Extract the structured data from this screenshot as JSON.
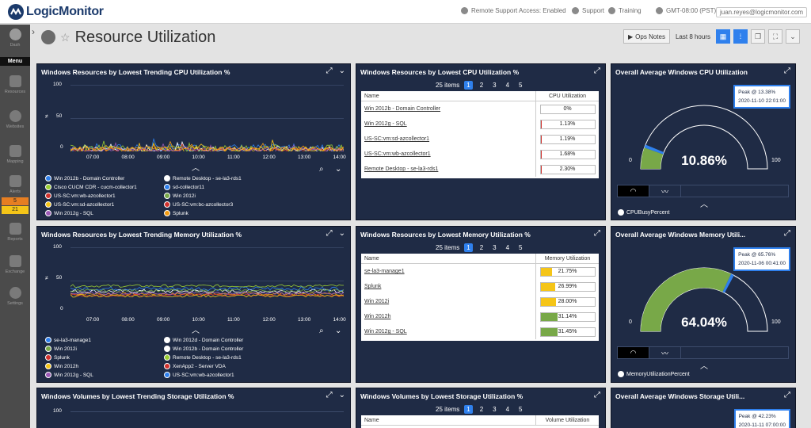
{
  "header": {
    "logo": "LogicMonitor",
    "remote": "Remote Support Access: Enabled",
    "support": "Support",
    "training": "Training",
    "timezone": "GMT-08:00 (PST)",
    "user": "juan.reyes@logicmonitor.com"
  },
  "sidebar": {
    "dash": "Dash",
    "menu": "Menu",
    "items": [
      "Resources",
      "Websites",
      "Mapping",
      "Alerts",
      "Reports",
      "Exchange",
      "Settings"
    ],
    "alert_counts": [
      "5",
      "21"
    ]
  },
  "page": {
    "title": "Resource Utilization",
    "ops_notes": "Ops Notes",
    "time_range": "Last 8 hours"
  },
  "colors": {
    "widget_bg": "#1f2b45",
    "accent": "#2f80ed",
    "gauge_green": "#78a848",
    "bar_yellow": "#f5c518",
    "bar_red": "#d0312d"
  },
  "cpu_trend": {
    "title": "Windows Resources by Lowest Trending CPU Utilization %",
    "y_ticks": [
      "100",
      "50",
      "0"
    ],
    "x_ticks": [
      "07:00",
      "08:00",
      "09:00",
      "10:00",
      "11:00",
      "12:00",
      "13:00",
      "14:00"
    ],
    "legend": [
      {
        "label": "Win 2012b - Domain Controller",
        "color": "#2f80ed"
      },
      {
        "label": "Remote Desktop - se-la3-rds1",
        "color": "#ffffff"
      },
      {
        "label": "Cisco CUCM CDR - cucm-collector1",
        "color": "#9acd32"
      },
      {
        "label": "sd-collector11",
        "color": "#2f80ed"
      },
      {
        "label": "US-SC:vm:wb-azcollector1",
        "color": "#d0312d"
      },
      {
        "label": "Win 2012i",
        "color": "#78a848"
      },
      {
        "label": "US-SC:vm:sd-azcollector1",
        "color": "#f5c518"
      },
      {
        "label": "US-SC:vm:bc-azcollector3",
        "color": "#d0312d"
      },
      {
        "label": "Win 2012g - SQL",
        "color": "#9b59b6"
      },
      {
        "label": "Splunk",
        "color": "#f39c12"
      }
    ]
  },
  "cpu_table": {
    "title": "Windows Resources by Lowest CPU Utilization %",
    "count": "25 items",
    "pages": [
      "1",
      "2",
      "3",
      "4",
      "5"
    ],
    "col_name": "Name",
    "col_val": "CPU Utilization",
    "rows": [
      {
        "name": "Win 2012b - Domain Controller",
        "value": "0%",
        "pct": 0
      },
      {
        "name": "Win 2012g - SQL",
        "value": "1.13%",
        "pct": 1.13
      },
      {
        "name": "US-SC:vm:sd-azcollector1",
        "value": "1.19%",
        "pct": 1.19
      },
      {
        "name": "US-SC:vm:wb-azcollector1",
        "value": "1.68%",
        "pct": 1.68
      },
      {
        "name": "Remote Desktop - se-la3-rds1",
        "value": "2.30%",
        "pct": 2.3
      }
    ]
  },
  "cpu_gauge": {
    "title": "Overall Average Windows CPU Utilization",
    "peak_label": "Peak @ 13.38%",
    "peak_time": "2020-11-10 22:01:00",
    "value": "10.86%",
    "value_num": 10.86,
    "min": "0",
    "max": "100",
    "legend": "CPUBusyPercent"
  },
  "mem_trend": {
    "title": "Windows Resources by Lowest Trending Memory Utilization %",
    "y_ticks": [
      "100",
      "50",
      "0"
    ],
    "x_ticks": [
      "07:00",
      "08:00",
      "09:00",
      "10:00",
      "11:00",
      "12:00",
      "13:00",
      "14:00"
    ],
    "legend": [
      {
        "label": "se-la3-manage1",
        "color": "#2f80ed"
      },
      {
        "label": "Win 2012d - Domain Controller",
        "color": "#ffffff"
      },
      {
        "label": "Win 2012i",
        "color": "#78a848"
      },
      {
        "label": "Win 2012b - Domain Controller",
        "color": "#ffffff"
      },
      {
        "label": "Splunk",
        "color": "#d0312d"
      },
      {
        "label": "Remote Desktop - se-la3-rds1",
        "color": "#9acd32"
      },
      {
        "label": "Win 2012h",
        "color": "#f5c518"
      },
      {
        "label": "XenApp2 - Server VDA",
        "color": "#d0312d"
      },
      {
        "label": "Win 2012g - SQL",
        "color": "#9b59b6"
      },
      {
        "label": "US-SC:vm:wb-azcollector1",
        "color": "#2f80ed"
      }
    ]
  },
  "mem_table": {
    "title": "Windows Resources by Lowest Memory Utilization %",
    "count": "25 items",
    "pages": [
      "1",
      "2",
      "3",
      "4",
      "5"
    ],
    "col_name": "Name",
    "col_val": "Memory Utilization",
    "rows": [
      {
        "name": "se-la3-manage1",
        "value": "21.75%",
        "pct": 21.75,
        "color": "#f5c518"
      },
      {
        "name": "Splunk",
        "value": "26.99%",
        "pct": 26.99,
        "color": "#f5c518"
      },
      {
        "name": "Win 2012i",
        "value": "28.00%",
        "pct": 28.0,
        "color": "#f5c518"
      },
      {
        "name": "Win 2012h",
        "value": "31.14%",
        "pct": 31.14,
        "color": "#78a848"
      },
      {
        "name": "Win 2012g - SQL",
        "value": "31.45%",
        "pct": 31.45,
        "color": "#78a848"
      }
    ]
  },
  "mem_gauge": {
    "title": "Overall Average Windows Memory Utili...",
    "peak_label": "Peak @ 65.76%",
    "peak_time": "2020-11-06 00:41:00",
    "value": "64.04%",
    "value_num": 64.04,
    "min": "0",
    "max": "100",
    "legend": "MemoryUtilizationPercent"
  },
  "vol_trend": {
    "title": "Windows Volumes by Lowest Trending Storage Utilization %",
    "y_top": "100"
  },
  "vol_table": {
    "title": "Windows Volumes by Lowest Storage Utilization %",
    "count": "25 items",
    "pages": [
      "1",
      "2",
      "3",
      "4",
      "5"
    ],
    "col_name": "Name",
    "col_val": "Volume Utilization"
  },
  "vol_gauge": {
    "title": "Overall Average Windows Storage Utili...",
    "peak_label": "Peak @ 42.23%",
    "peak_time": "2020-11-11 07:00:00"
  }
}
